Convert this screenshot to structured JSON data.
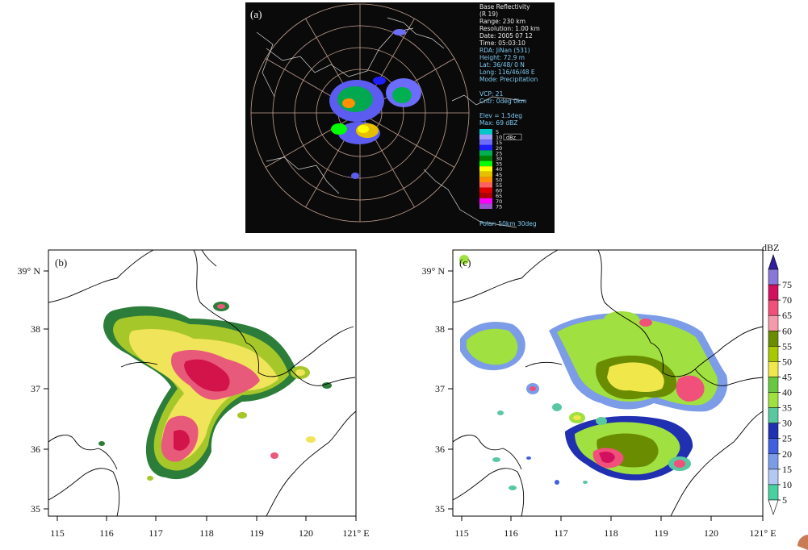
{
  "panel_a": {
    "label": "(a)",
    "info_lines": [
      "Base Reflectivity",
      "(R 19)",
      "Range: 230 km",
      "Resolution: 1.00 km",
      "Date: 2005 07 12",
      "Time: 05:03:10",
      "RDA: JiNan (531)",
      "Height: 72.9 m",
      "Lat:  36/48/ 0 N",
      "Long: 116/46/48 E",
      "Mode: Precipitation"
    ],
    "vcp": "VCP: 21",
    "cntr": "Cntr:   0deg   0km",
    "elev": "Elev = 1.5deg",
    "max": "Max: 69 dBZ",
    "legend_values": [
      "5",
      "10",
      "15",
      "20",
      "25",
      "30",
      "35",
      "40",
      "45",
      "50",
      "55",
      "60",
      "65",
      "70",
      "75"
    ],
    "legend_unit": "dBz",
    "polar": "Polar:  50km 30deg",
    "legend_colors": [
      "#00c8c8",
      "#a0a0ff",
      "#6c6cff",
      "#1e1eff",
      "#00b050",
      "#008000",
      "#00ff00",
      "#ffff00",
      "#e6c000",
      "#ff9000",
      "#ff6060",
      "#e00000",
      "#b00000",
      "#ff00ff",
      "#9955c9"
    ]
  },
  "panel_b": {
    "label": "(b)"
  },
  "panel_c": {
    "label": "(c)"
  },
  "axes": {
    "lat_ticks": [
      "39° N",
      "38",
      "37",
      "36",
      "35"
    ],
    "lon_ticks": [
      "115",
      "116",
      "117",
      "118",
      "119",
      "120",
      "121° E"
    ]
  },
  "colorbar": {
    "unit": "dBZ",
    "ticks": [
      "75",
      "70",
      "65",
      "60",
      "55",
      "50",
      "45",
      "40",
      "35",
      "30",
      "25",
      "20",
      "15",
      "10",
      "5"
    ],
    "colors": [
      "#8a78d8",
      "#d21060",
      "#f0507a",
      "#f59aaa",
      "#6a8c00",
      "#a8c800",
      "#f0e84a",
      "#6ac840",
      "#a0e040",
      "#58c8a0",
      "#2030b0",
      "#4060e0",
      "#7c9ce8",
      "#b4c8f4",
      "#48d0a0"
    ]
  }
}
